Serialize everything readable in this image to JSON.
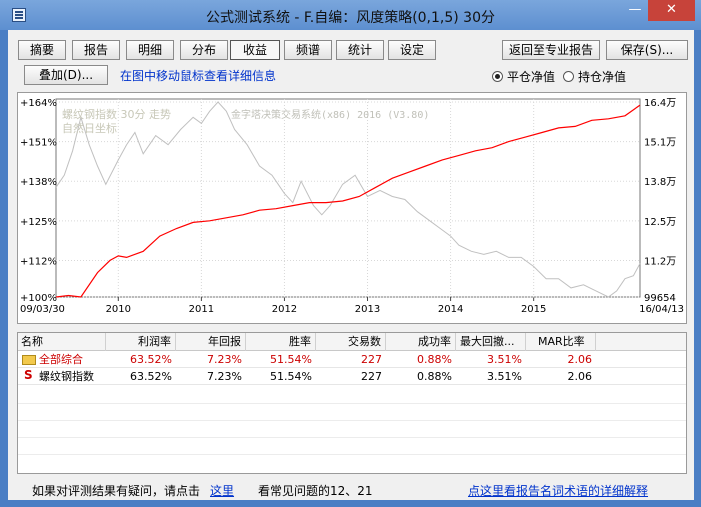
{
  "window": {
    "title": "公式测试系统 - F.自编：风度策略(0,1,5) 30分",
    "minimize": "—",
    "close": "✕"
  },
  "toolbar": {
    "tabs": [
      "摘要",
      "报告",
      "明细",
      "分布",
      "收益",
      "频谱",
      "统计",
      "设定"
    ],
    "active_tab": "收益",
    "return_button": "返回至专业报告",
    "save_button": "保存(S)...",
    "overlay_button": "叠加(D)...",
    "hint": "在图中移动鼠标查看详细信息",
    "radio_flat": "平仓净值",
    "radio_hold": "持仓净值",
    "radio_selected": "平仓净值"
  },
  "chart_data": {
    "type": "line",
    "overlay_text_line1": "螺纹钢指数 30分 走势",
    "overlay_text_line2": "自然日坐标",
    "watermark": "金字塔决策交易系统(x86) 2016 (V3.80)",
    "left_axis_ticks": [
      "+164%",
      "+151%",
      "+138%",
      "+125%",
      "+112%",
      "+100%"
    ],
    "left_axis_values": [
      164,
      151,
      138,
      125,
      112,
      100
    ],
    "right_axis_ticks": [
      "16.4万",
      "15.1万",
      "13.8万",
      "12.5万",
      "11.2万",
      "99654"
    ],
    "x_ticks": [
      "09/03/30",
      "2010",
      "2011",
      "2012",
      "2013",
      "2014",
      "2015",
      "16/04/13"
    ],
    "series": [
      {
        "name": "平仓净值",
        "color": "#ff0000",
        "x": [
          2009.25,
          2009.4,
          2009.55,
          2009.75,
          2009.9,
          2010.0,
          2010.1,
          2010.3,
          2010.5,
          2010.7,
          2010.9,
          2011.1,
          2011.3,
          2011.5,
          2011.7,
          2011.9,
          2012.1,
          2012.3,
          2012.5,
          2012.7,
          2012.9,
          2013.1,
          2013.3,
          2013.5,
          2013.7,
          2013.9,
          2014.1,
          2014.3,
          2014.5,
          2014.7,
          2014.9,
          2015.1,
          2015.3,
          2015.5,
          2015.7,
          2015.9,
          2016.1,
          2016.28
        ],
        "values": [
          100,
          100.5,
          100,
          108,
          112,
          113.5,
          113,
          115,
          120,
          122.5,
          124.5,
          125,
          126,
          127,
          128.5,
          129,
          130,
          131,
          131,
          131.5,
          133,
          136,
          139,
          141,
          143,
          145,
          146.5,
          148,
          149,
          151,
          152.5,
          154,
          155.5,
          156,
          158,
          158.5,
          159.5,
          163
        ]
      },
      {
        "name": "螺纹钢指数",
        "color": "#c0c0c0",
        "x": [
          2009.25,
          2009.35,
          2009.45,
          2009.55,
          2009.65,
          2009.75,
          2009.85,
          2010.0,
          2010.1,
          2010.2,
          2010.3,
          2010.45,
          2010.6,
          2010.75,
          2010.9,
          2011.0,
          2011.1,
          2011.2,
          2011.3,
          2011.4,
          2011.55,
          2011.7,
          2011.85,
          2012.0,
          2012.1,
          2012.2,
          2012.35,
          2012.45,
          2012.55,
          2012.7,
          2012.85,
          2013.0,
          2013.15,
          2013.3,
          2013.45,
          2013.6,
          2013.75,
          2013.9,
          2014.0,
          2014.1,
          2014.25,
          2014.4,
          2014.55,
          2014.7,
          2014.85,
          2015.0,
          2015.15,
          2015.3,
          2015.45,
          2015.6,
          2015.75,
          2015.9,
          2016.0,
          2016.1,
          2016.2,
          2016.28
        ],
        "values": [
          136,
          140,
          148,
          159,
          150,
          143,
          137,
          145,
          150,
          154,
          147,
          153,
          150,
          155,
          159,
          157,
          161,
          164,
          161,
          155,
          150,
          143,
          140,
          134,
          131,
          138,
          130,
          127,
          130,
          137,
          140,
          133,
          135,
          133,
          132,
          128,
          125,
          122,
          120,
          117,
          115,
          114,
          115,
          113,
          113,
          110,
          106,
          106,
          103,
          104,
          102,
          100,
          102,
          106,
          107,
          111
        ]
      }
    ],
    "x_range": [
      2009.25,
      2016.28
    ],
    "y_range": [
      100,
      165
    ]
  },
  "table": {
    "columns": [
      "名称",
      "利润率",
      "年回报",
      "胜率",
      "交易数",
      "成功率",
      "最大回撤...",
      "MAR比率"
    ],
    "rows": [
      {
        "name": "全部综合",
        "profit": "63.52%",
        "annual": "7.23%",
        "win": "51.54%",
        "trades": "227",
        "success": "0.88%",
        "drawdown": "3.51%",
        "mar": "2.06",
        "style": "red"
      },
      {
        "name": "螺纹钢指数",
        "profit": "63.52%",
        "annual": "7.23%",
        "win": "51.54%",
        "trades": "227",
        "success": "0.88%",
        "drawdown": "3.51%",
        "mar": "2.06",
        "style": "black"
      }
    ]
  },
  "footer": {
    "question_text": "如果对评测结果有疑问，请点击",
    "here_link": "这里",
    "faq_text": "看常见问题的12、21",
    "glossary_link": "点这里看报告名词术语的详细解释"
  }
}
